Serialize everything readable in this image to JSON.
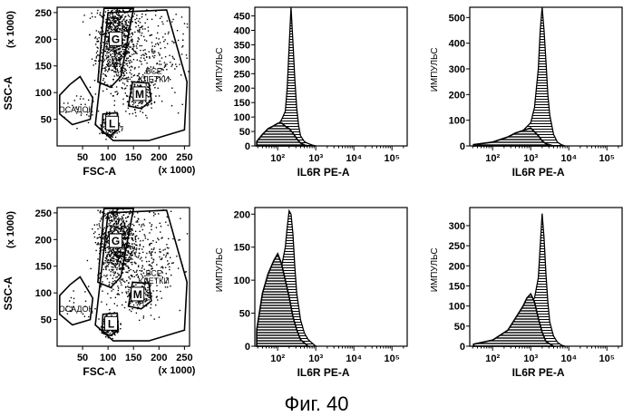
{
  "caption": "Фиг. 40",
  "chart_data": [
    {
      "type": "scatter",
      "xlabel": "FSC-A",
      "xunit": "(x 1000)",
      "ylabel": "SSC-A",
      "yunit": "(x 1000)",
      "xlim": [
        0,
        260
      ],
      "ylim": [
        0,
        260
      ],
      "xticks": [
        "50",
        "100",
        "150",
        "200",
        "250"
      ],
      "yticks": [
        "50",
        "100",
        "150",
        "200",
        "250"
      ],
      "gates": [
        {
          "label": "G",
          "x": 115,
          "y": 200
        },
        {
          "label": "M",
          "x": 162,
          "y": 97
        },
        {
          "label": "L",
          "x": 108,
          "y": 42
        },
        {
          "label": "ОСАДОК",
          "x": 37,
          "y": 68
        },
        {
          "label": "ВСЕ",
          "x": 190,
          "y": 140
        },
        {
          "label": "КЛЕТКИ",
          "x": 190,
          "y": 125
        }
      ]
    },
    {
      "type": "area",
      "xlabel": "IL6R PE-A",
      "ylabel": "ИМПУЛЬС",
      "xscale": "log",
      "xlim": [
        1.4,
        5.4
      ],
      "ylim": [
        0,
        480
      ],
      "xticks": [
        "10²",
        "10³",
        "10⁴",
        "10⁵"
      ],
      "yticks": [
        "0",
        "50",
        "100",
        "150",
        "200",
        "250",
        "300",
        "350",
        "400",
        "450"
      ],
      "series": [
        {
          "x": [
            1.45,
            1.6,
            1.75,
            1.9,
            2.0,
            2.1,
            2.2,
            2.25,
            2.3,
            2.35,
            2.4,
            2.45,
            2.5,
            2.55,
            2.6,
            2.7,
            2.8,
            2.9,
            3.0
          ],
          "values": [
            15,
            35,
            45,
            55,
            72,
            90,
            120,
            200,
            340,
            480,
            360,
            230,
            130,
            70,
            35,
            15,
            8,
            3,
            0
          ]
        },
        {
          "x": [
            1.45,
            1.6,
            1.75,
            1.9,
            2.0,
            2.1,
            2.2,
            2.3,
            2.4,
            2.5,
            2.6,
            2.7,
            2.8
          ],
          "values": [
            15,
            40,
            60,
            70,
            78,
            80,
            68,
            60,
            45,
            25,
            10,
            3,
            0
          ]
        }
      ]
    },
    {
      "type": "area",
      "xlabel": "IL6R PE-A",
      "ylabel": "ИМПУЛЬС",
      "xscale": "log",
      "xlim": [
        1.4,
        5.4
      ],
      "ylim": [
        0,
        540
      ],
      "xticks": [
        "10²",
        "10³",
        "10⁴",
        "10⁵"
      ],
      "yticks": [
        "0",
        "100",
        "200",
        "300",
        "400",
        "500"
      ],
      "series": [
        {
          "x": [
            1.5,
            2.0,
            2.5,
            2.8,
            3.0,
            3.1,
            3.2,
            3.25,
            3.3,
            3.35,
            3.4,
            3.45,
            3.5,
            3.6,
            3.7,
            3.8,
            3.9
          ],
          "values": [
            5,
            15,
            40,
            60,
            90,
            150,
            300,
            450,
            540,
            450,
            330,
            200,
            120,
            45,
            15,
            5,
            0
          ]
        },
        {
          "x": [
            1.5,
            2.0,
            2.4,
            2.6,
            2.8,
            2.9,
            3.0,
            3.1,
            3.2,
            3.3,
            3.4,
            3.6
          ],
          "values": [
            5,
            15,
            35,
            50,
            60,
            65,
            70,
            55,
            40,
            20,
            8,
            0
          ]
        }
      ]
    },
    {
      "type": "scatter",
      "xlabel": "FSC-A",
      "xunit": "(x 1000)",
      "ylabel": "SSC-A",
      "yunit": "(x 1000)",
      "xlim": [
        0,
        260
      ],
      "ylim": [
        0,
        260
      ],
      "xticks": [
        "50",
        "100",
        "150",
        "200",
        "250"
      ],
      "yticks": [
        "50",
        "100",
        "150",
        "200",
        "250"
      ],
      "gates": [
        {
          "label": "G",
          "x": 115,
          "y": 197
        },
        {
          "label": "M",
          "x": 158,
          "y": 97
        },
        {
          "label": "L",
          "x": 106,
          "y": 42
        },
        {
          "label": "ОСАДОК",
          "x": 37,
          "y": 70
        },
        {
          "label": "ВСЕ",
          "x": 190,
          "y": 137
        },
        {
          "label": "КЛЕТКИ",
          "x": 190,
          "y": 122
        }
      ]
    },
    {
      "type": "area",
      "xlabel": "IL6R PE-A",
      "ylabel": "ИМПУЛЬС",
      "xscale": "log",
      "xlim": [
        1.4,
        5.4
      ],
      "ylim": [
        0,
        210
      ],
      "xticks": [
        "10²",
        "10³",
        "10⁴",
        "10⁵"
      ],
      "yticks": [
        "0",
        "50",
        "100",
        "150",
        "200"
      ],
      "series": [
        {
          "x": [
            1.45,
            1.6,
            1.75,
            1.9,
            2.0,
            2.1,
            2.2,
            2.25,
            2.3,
            2.35,
            2.4,
            2.45,
            2.5,
            2.6,
            2.7,
            2.8,
            2.9,
            3.0
          ],
          "values": [
            20,
            60,
            80,
            95,
            110,
            120,
            150,
            180,
            205,
            200,
            170,
            120,
            80,
            40,
            20,
            10,
            5,
            0
          ]
        },
        {
          "x": [
            1.45,
            1.6,
            1.75,
            1.9,
            2.0,
            2.1,
            2.2,
            2.3,
            2.4,
            2.5,
            2.6,
            2.8
          ],
          "values": [
            25,
            80,
            110,
            130,
            140,
            125,
            100,
            75,
            45,
            25,
            10,
            0
          ]
        }
      ]
    },
    {
      "type": "area",
      "xlabel": "IL6R PE-A",
      "ylabel": "ИМПУЛЬС",
      "xscale": "log",
      "xlim": [
        1.4,
        5.4
      ],
      "ylim": [
        0,
        345
      ],
      "xticks": [
        "10²",
        "10³",
        "10⁴",
        "10⁵"
      ],
      "yticks": [
        "0",
        "50",
        "100",
        "150",
        "200",
        "250",
        "300"
      ],
      "series": [
        {
          "x": [
            1.5,
            2.0,
            2.5,
            2.8,
            3.0,
            3.1,
            3.2,
            3.25,
            3.3,
            3.35,
            3.4,
            3.45,
            3.5,
            3.6,
            3.7,
            3.8,
            3.9
          ],
          "values": [
            5,
            15,
            40,
            80,
            110,
            120,
            170,
            250,
            330,
            270,
            180,
            110,
            60,
            25,
            10,
            3,
            0
          ]
        },
        {
          "x": [
            1.5,
            2.0,
            2.4,
            2.6,
            2.8,
            2.9,
            3.0,
            3.1,
            3.2,
            3.3,
            3.4,
            3.6
          ],
          "values": [
            5,
            15,
            40,
            70,
            100,
            120,
            130,
            110,
            70,
            35,
            12,
            0
          ]
        }
      ]
    }
  ]
}
